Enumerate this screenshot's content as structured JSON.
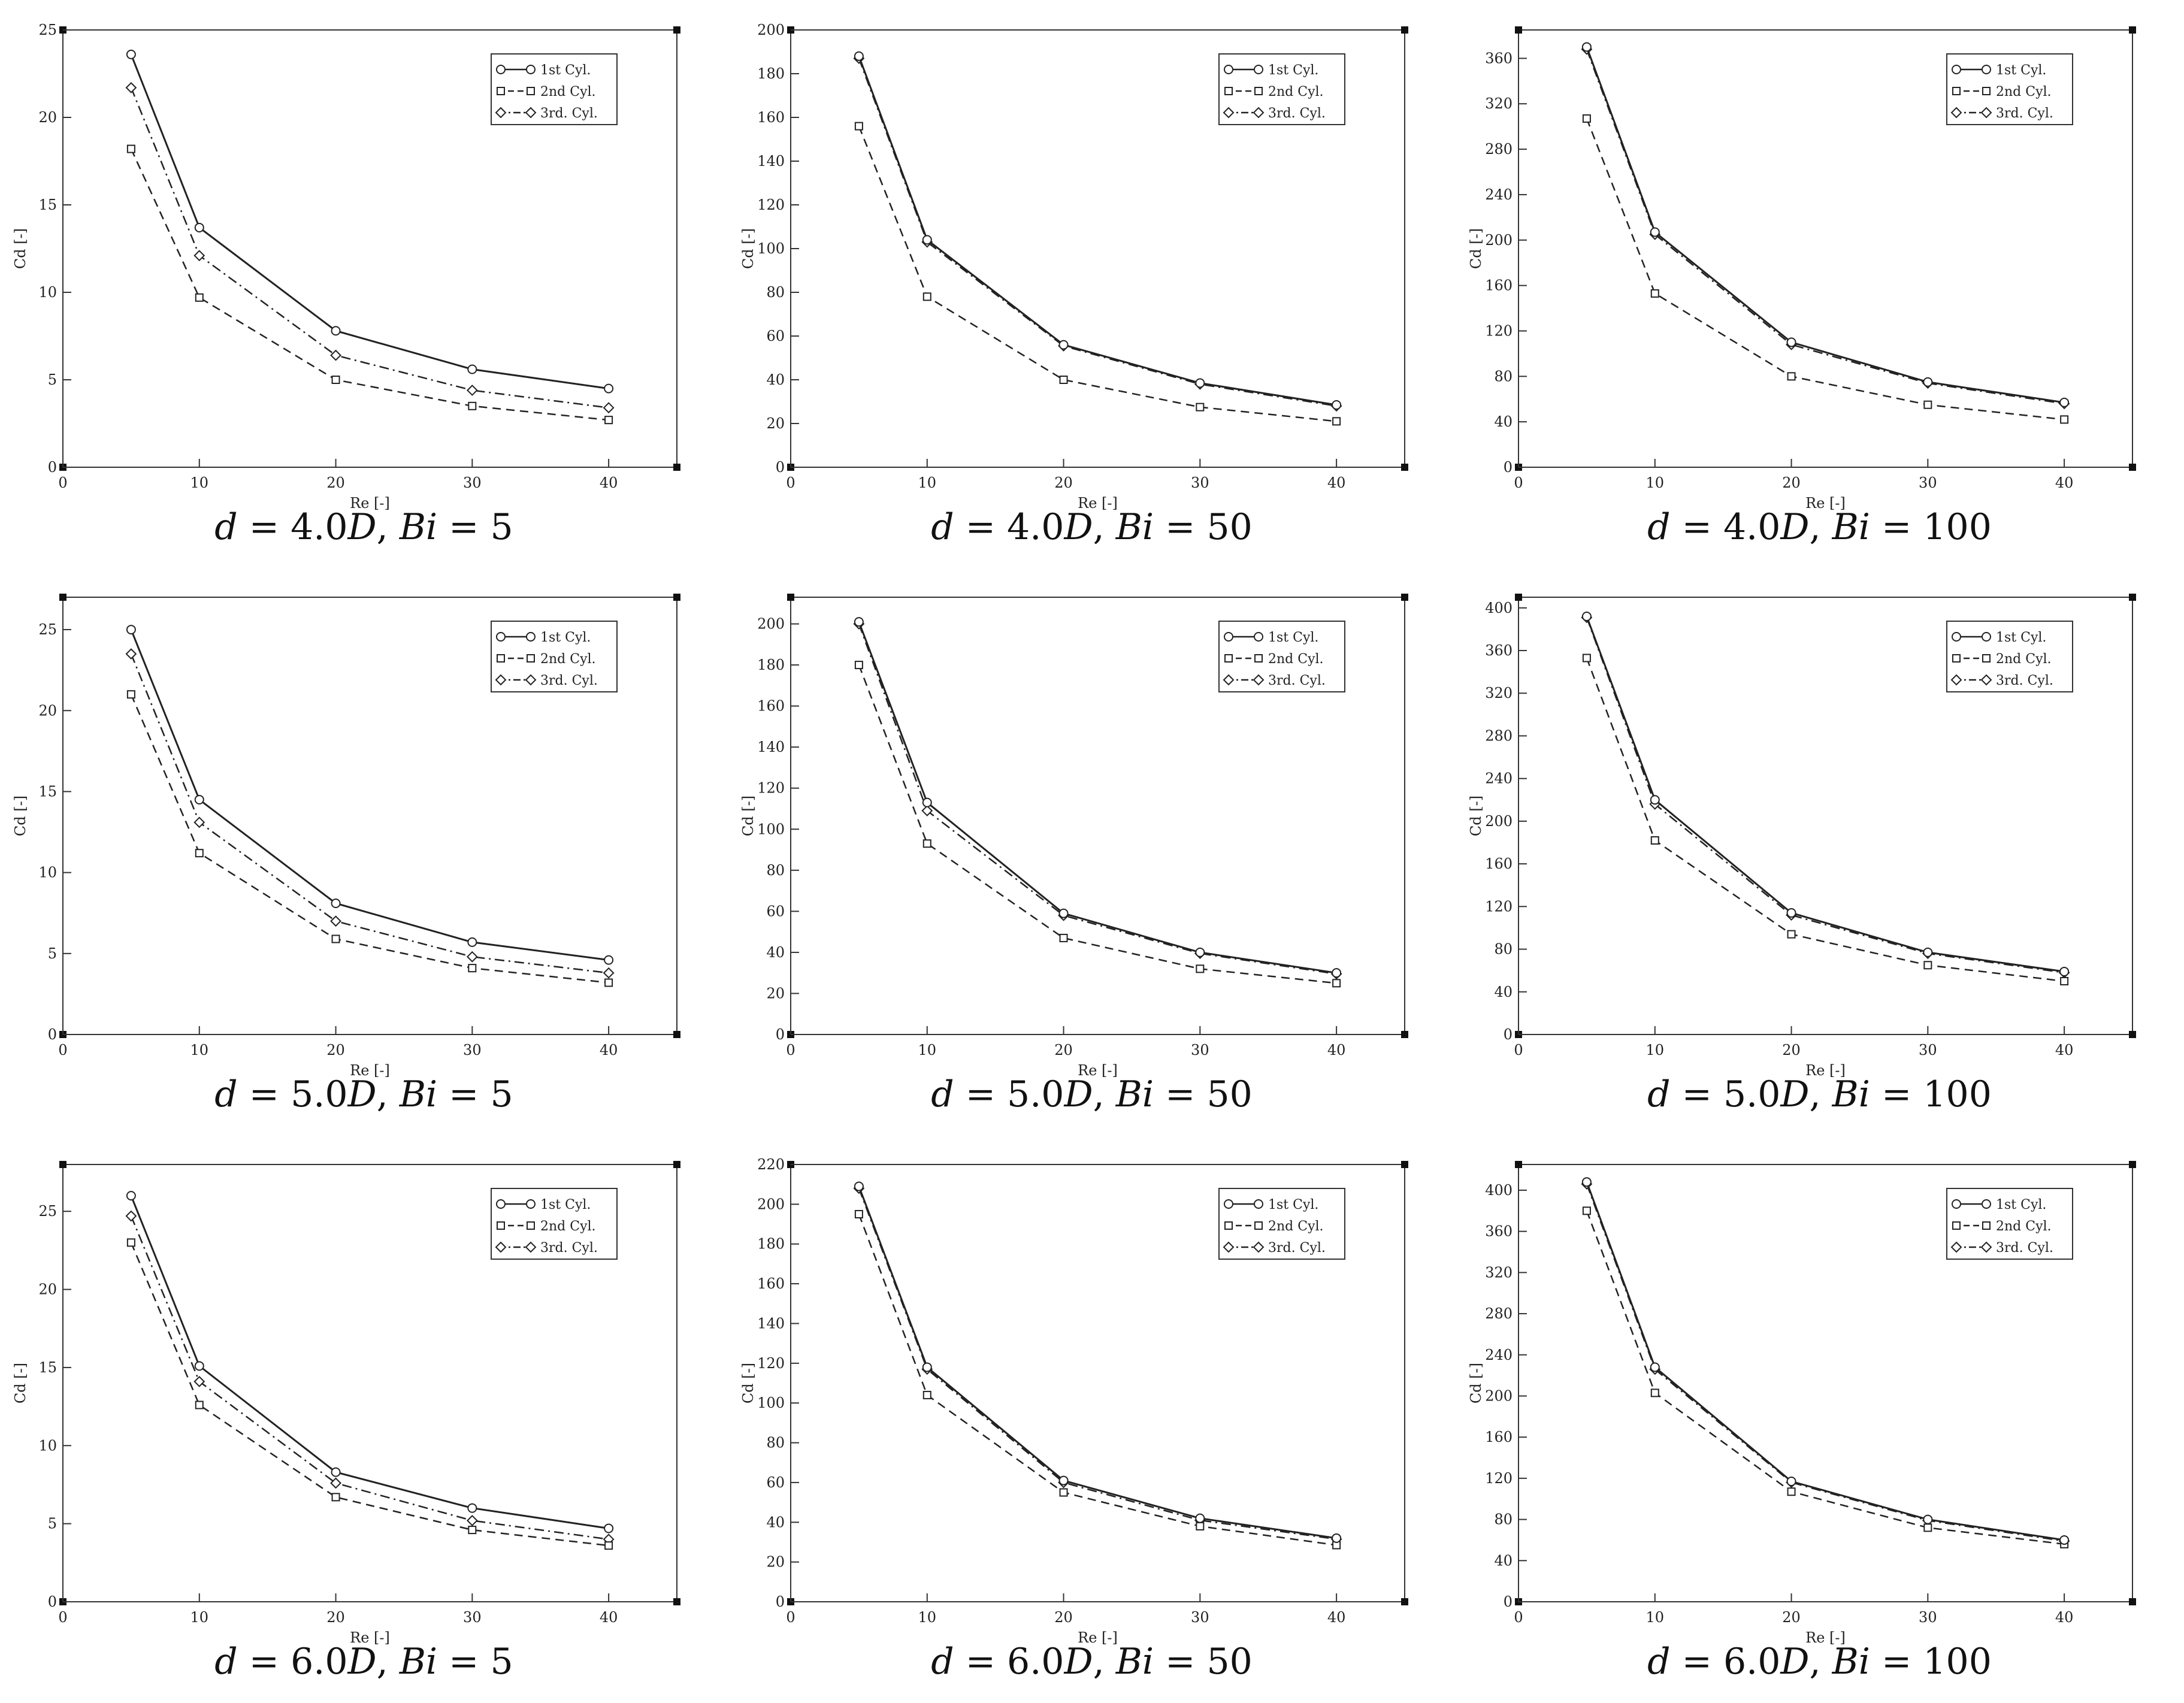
{
  "chart_data": [
    {
      "type": "line",
      "title": "",
      "xlabel": "Re [-]",
      "ylabel": "Cd [-]",
      "xlim": [
        0,
        45
      ],
      "ylim": [
        0,
        25
      ],
      "xticks": [
        0,
        10,
        20,
        30,
        40
      ],
      "yticks": [
        0,
        5,
        10,
        15,
        20,
        25
      ],
      "caption": {
        "d": "4.0",
        "Bi": "5"
      },
      "x": [
        5,
        10,
        20,
        30,
        40
      ],
      "series": [
        {
          "name": "1st Cyl.",
          "style": "solid",
          "marker": "circle",
          "values": [
            23.6,
            13.7,
            7.8,
            5.6,
            4.5
          ]
        },
        {
          "name": "2nd Cyl.",
          "style": "dash",
          "marker": "square",
          "values": [
            18.2,
            9.7,
            5.0,
            3.5,
            2.7
          ]
        },
        {
          "name": "3rd. Cyl.",
          "style": "dashdot",
          "marker": "diamond",
          "values": [
            21.7,
            12.1,
            6.4,
            4.4,
            3.4
          ]
        }
      ]
    },
    {
      "type": "line",
      "title": "",
      "xlabel": "Re [-]",
      "ylabel": "Cd [-]",
      "xlim": [
        0,
        45
      ],
      "ylim": [
        0,
        200
      ],
      "xticks": [
        0,
        10,
        20,
        30,
        40
      ],
      "yticks": [
        0,
        20,
        40,
        60,
        80,
        100,
        120,
        140,
        160,
        180,
        200
      ],
      "caption": {
        "d": "4.0",
        "Bi": "50"
      },
      "x": [
        5,
        10,
        20,
        30,
        40
      ],
      "series": [
        {
          "name": "1st Cyl.",
          "style": "solid",
          "marker": "circle",
          "values": [
            188,
            104,
            56,
            38.5,
            28.5
          ]
        },
        {
          "name": "2nd Cyl.",
          "style": "dash",
          "marker": "square",
          "values": [
            156,
            78,
            40,
            27.5,
            21
          ]
        },
        {
          "name": "3rd. Cyl.",
          "style": "dashdot",
          "marker": "diamond",
          "values": [
            187,
            103,
            55.5,
            38,
            28
          ]
        }
      ]
    },
    {
      "type": "line",
      "title": "",
      "xlabel": "Re [-]",
      "ylabel": "Cd [-]",
      "xlim": [
        0,
        45
      ],
      "ylim": [
        0,
        385
      ],
      "xticks": [
        0,
        10,
        20,
        30,
        40
      ],
      "yticks": [
        0,
        40,
        80,
        120,
        160,
        200,
        240,
        280,
        320,
        360
      ],
      "caption": {
        "d": "4.0",
        "Bi": "100"
      },
      "x": [
        5,
        10,
        20,
        30,
        40
      ],
      "series": [
        {
          "name": "1st Cyl.",
          "style": "solid",
          "marker": "circle",
          "values": [
            370,
            207,
            110,
            75,
            57
          ]
        },
        {
          "name": "2nd Cyl.",
          "style": "dash",
          "marker": "square",
          "values": [
            307,
            153,
            80,
            55,
            42
          ]
        },
        {
          "name": "3rd. Cyl.",
          "style": "dashdot",
          "marker": "diamond",
          "values": [
            368,
            205,
            108,
            74,
            56
          ]
        }
      ]
    },
    {
      "type": "line",
      "title": "",
      "xlabel": "Re [-]",
      "ylabel": "Cd [-]",
      "xlim": [
        0,
        45
      ],
      "ylim": [
        0,
        27
      ],
      "xticks": [
        0,
        10,
        20,
        30,
        40
      ],
      "yticks": [
        0,
        5,
        10,
        15,
        20,
        25
      ],
      "caption": {
        "d": "5.0",
        "Bi": "5"
      },
      "x": [
        5,
        10,
        20,
        30,
        40
      ],
      "series": [
        {
          "name": "1st Cyl.",
          "style": "solid",
          "marker": "circle",
          "values": [
            25,
            14.5,
            8.1,
            5.7,
            4.6
          ]
        },
        {
          "name": "2nd Cyl.",
          "style": "dash",
          "marker": "square",
          "values": [
            21,
            11.2,
            5.9,
            4.1,
            3.2
          ]
        },
        {
          "name": "3rd. Cyl.",
          "style": "dashdot",
          "marker": "diamond",
          "values": [
            23.5,
            13.1,
            7.0,
            4.8,
            3.8
          ]
        }
      ]
    },
    {
      "type": "line",
      "title": "",
      "xlabel": "Re [-]",
      "ylabel": "Cd [-]",
      "xlim": [
        0,
        45
      ],
      "ylim": [
        0,
        213
      ],
      "xticks": [
        0,
        10,
        20,
        30,
        40
      ],
      "yticks": [
        0,
        20,
        40,
        60,
        80,
        100,
        120,
        140,
        160,
        180,
        200
      ],
      "caption": {
        "d": "5.0",
        "Bi": "50"
      },
      "x": [
        5,
        10,
        20,
        30,
        40
      ],
      "series": [
        {
          "name": "1st Cyl.",
          "style": "solid",
          "marker": "circle",
          "values": [
            201,
            113,
            59,
            40,
            30
          ]
        },
        {
          "name": "2nd Cyl.",
          "style": "dash",
          "marker": "square",
          "values": [
            180,
            93,
            47,
            32,
            25
          ]
        },
        {
          "name": "3rd. Cyl.",
          "style": "dashdot",
          "marker": "diamond",
          "values": [
            200,
            109,
            58,
            39.5,
            29.5
          ]
        }
      ]
    },
    {
      "type": "line",
      "title": "",
      "xlabel": "Re [-]",
      "ylabel": "Cd [-]",
      "xlim": [
        0,
        45
      ],
      "ylim": [
        0,
        410
      ],
      "xticks": [
        0,
        10,
        20,
        30,
        40
      ],
      "yticks": [
        0,
        40,
        80,
        120,
        160,
        200,
        240,
        280,
        320,
        360,
        400
      ],
      "caption": {
        "d": "5.0",
        "Bi": "100"
      },
      "x": [
        5,
        10,
        20,
        30,
        40
      ],
      "series": [
        {
          "name": "1st Cyl.",
          "style": "solid",
          "marker": "circle",
          "values": [
            392,
            220,
            114,
            77,
            59
          ]
        },
        {
          "name": "2nd Cyl.",
          "style": "dash",
          "marker": "square",
          "values": [
            353,
            182,
            94,
            65,
            50
          ]
        },
        {
          "name": "3rd. Cyl.",
          "style": "dashdot",
          "marker": "diamond",
          "values": [
            391,
            216,
            112,
            76,
            58
          ]
        }
      ]
    },
    {
      "type": "line",
      "title": "",
      "xlabel": "Re [-]",
      "ylabel": "Cd [-]",
      "xlim": [
        0,
        45
      ],
      "ylim": [
        0,
        28
      ],
      "xticks": [
        0,
        10,
        20,
        30,
        40
      ],
      "yticks": [
        0,
        5,
        10,
        15,
        20,
        25
      ],
      "caption": {
        "d": "6.0",
        "Bi": "5"
      },
      "x": [
        5,
        10,
        20,
        30,
        40
      ],
      "series": [
        {
          "name": "1st Cyl.",
          "style": "solid",
          "marker": "circle",
          "values": [
            26,
            15.1,
            8.3,
            6.0,
            4.7
          ]
        },
        {
          "name": "2nd Cyl.",
          "style": "dash",
          "marker": "square",
          "values": [
            23,
            12.6,
            6.7,
            4.6,
            3.6
          ]
        },
        {
          "name": "3rd. Cyl.",
          "style": "dashdot",
          "marker": "diamond",
          "values": [
            24.7,
            14.1,
            7.6,
            5.2,
            4.0
          ]
        }
      ]
    },
    {
      "type": "line",
      "title": "",
      "xlabel": "Re [-]",
      "ylabel": "Cd [-]",
      "xlim": [
        0,
        45
      ],
      "ylim": [
        0,
        220
      ],
      "xticks": [
        0,
        10,
        20,
        30,
        40
      ],
      "yticks": [
        0,
        20,
        40,
        60,
        80,
        100,
        120,
        140,
        160,
        180,
        200,
        220
      ],
      "caption": {
        "d": "6.0",
        "Bi": "50"
      },
      "x": [
        5,
        10,
        20,
        30,
        40
      ],
      "series": [
        {
          "name": "1st Cyl.",
          "style": "solid",
          "marker": "circle",
          "values": [
            209,
            118,
            61,
            42,
            32
          ]
        },
        {
          "name": "2nd Cyl.",
          "style": "dash",
          "marker": "square",
          "values": [
            195,
            104,
            55,
            38,
            28.5
          ]
        },
        {
          "name": "3rd. Cyl.",
          "style": "dashdot",
          "marker": "diamond",
          "values": [
            208,
            117,
            60,
            41,
            31.5
          ]
        }
      ]
    },
    {
      "type": "line",
      "title": "",
      "xlabel": "Re [-]",
      "ylabel": "Cd [-]",
      "xlim": [
        0,
        45
      ],
      "ylim": [
        0,
        425
      ],
      "xticks": [
        0,
        10,
        20,
        30,
        40
      ],
      "yticks": [
        0,
        40,
        80,
        120,
        160,
        200,
        240,
        280,
        320,
        360,
        400
      ],
      "caption": {
        "d": "6.0",
        "Bi": "100"
      },
      "x": [
        5,
        10,
        20,
        30,
        40
      ],
      "series": [
        {
          "name": "1st Cyl.",
          "style": "solid",
          "marker": "circle",
          "values": [
            408,
            228,
            117,
            80,
            60
          ]
        },
        {
          "name": "2nd Cyl.",
          "style": "dash",
          "marker": "square",
          "values": [
            380,
            203,
            107,
            72,
            56
          ]
        },
        {
          "name": "3rd. Cyl.",
          "style": "dashdot",
          "marker": "diamond",
          "values": [
            406,
            226,
            116,
            79,
            59
          ]
        }
      ]
    }
  ]
}
